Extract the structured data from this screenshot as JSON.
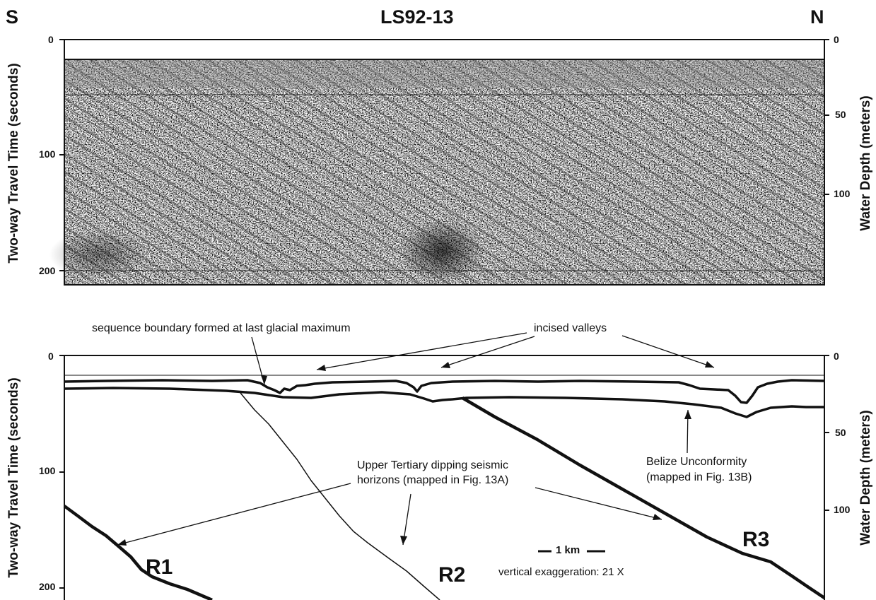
{
  "header": {
    "direction_left": "S",
    "title": "LS92-13",
    "direction_right": "N"
  },
  "top_panel": {
    "y_axis_left_label": "Two-way Travel Time (seconds)",
    "y_axis_right_label": "Water Depth (meters)",
    "left_ticks": [
      "0",
      "100",
      "200"
    ],
    "right_ticks": [
      "0",
      "50",
      "100"
    ]
  },
  "bottom_panel": {
    "y_axis_left_label": "Two-way Travel Time (seconds)",
    "y_axis_right_label": "Water Depth (meters)",
    "left_ticks": [
      "0",
      "100",
      "200"
    ],
    "right_ticks": [
      "0",
      "50",
      "100"
    ],
    "annotations": {
      "sequence_boundary": "sequence boundary formed at last glacial maximum",
      "incised_valleys": "incised valleys",
      "upper_tertiary_line1": "Upper Tertiary dipping seismic",
      "upper_tertiary_line2": "horizons (mapped in Fig. 13A)",
      "belize_line1": "Belize Unconformity",
      "belize_line2": "(mapped in Fig. 13B)",
      "scale_bar": "1 km",
      "vertical_exaggeration": "vertical exaggeration: 21 X"
    },
    "reflector_labels": [
      "R1",
      "R2",
      "R3"
    ]
  },
  "colors": {
    "ink": "#111111",
    "background": "#ffffff"
  }
}
